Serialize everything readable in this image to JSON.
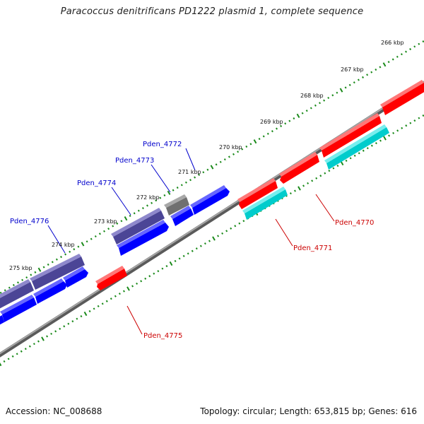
{
  "title": "Paracoccus denitrificans PD1222 plasmid 1, complete sequence",
  "footer": {
    "accession": "Accession: NC_008688",
    "summary": "Topology: circular; Length: 653,815 bp; Genes: 616"
  },
  "colors": {
    "backbone": "#8c8c8c",
    "ticks": "#1a8a1a",
    "gene_red": "#ff0000",
    "gene_blue": "#0000ff",
    "gene_cyan": "#00cccc",
    "gene_slate": "#4b4596",
    "gene_gray": "#707070",
    "label_blue": "#0000cc",
    "label_red": "#cc0000"
  },
  "scale_labels": [
    {
      "id": "kbp-266",
      "text": "266 kbp"
    },
    {
      "id": "kbp-267",
      "text": "267 kbp"
    },
    {
      "id": "kbp-268",
      "text": "268 kbp"
    },
    {
      "id": "kbp-269",
      "text": "269 kbp"
    },
    {
      "id": "kbp-270",
      "text": "270 kbp"
    },
    {
      "id": "kbp-271",
      "text": "271 kbp"
    },
    {
      "id": "kbp-272",
      "text": "272 kbp"
    },
    {
      "id": "kbp-273",
      "text": "273 kbp"
    },
    {
      "id": "kbp-274",
      "text": "274 kbp"
    },
    {
      "id": "kbp-275",
      "text": "275 kbp"
    }
  ],
  "genes": [
    {
      "id": "Pden_4770",
      "label": "Pden_4770",
      "strand": "-",
      "color": "red"
    },
    {
      "id": "Pden_4771",
      "label": "Pden_4771",
      "strand": "-",
      "color": "cyan"
    },
    {
      "id": "Pden_4772",
      "label": "Pden_4772",
      "strand": "+",
      "color": "blue"
    },
    {
      "id": "Pden_4773",
      "label": "Pden_4773",
      "strand": "+",
      "color": "blue"
    },
    {
      "id": "Pden_4774",
      "label": "Pden_4774",
      "strand": "+",
      "color": "blue"
    },
    {
      "id": "Pden_4775",
      "label": "Pden_4775",
      "strand": "-",
      "color": "red"
    },
    {
      "id": "Pden_4776",
      "label": "Pden_4776",
      "strand": "+",
      "color": "blue"
    }
  ]
}
